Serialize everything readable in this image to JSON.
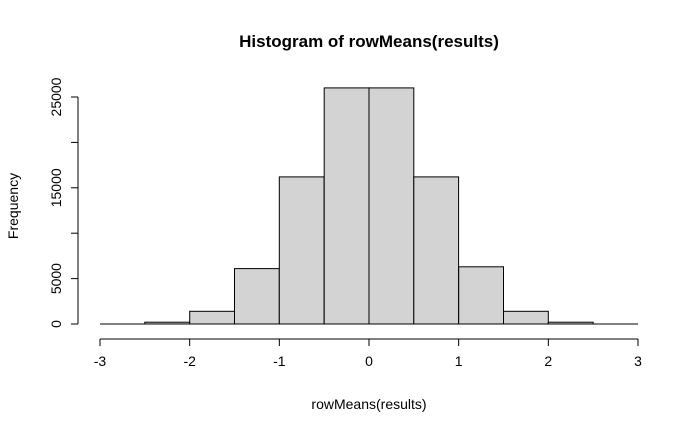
{
  "chart_data": {
    "type": "bar",
    "title": "Histogram of rowMeans(results)",
    "xlabel": "rowMeans(results)",
    "ylabel": "Frequency",
    "bins": [
      {
        "from": -3.0,
        "to": -2.5,
        "count": 0
      },
      {
        "from": -2.5,
        "to": -2.0,
        "count": 200
      },
      {
        "from": -2.0,
        "to": -1.5,
        "count": 1400
      },
      {
        "from": -1.5,
        "to": -1.0,
        "count": 6100
      },
      {
        "from": -1.0,
        "to": -0.5,
        "count": 16200
      },
      {
        "from": -0.5,
        "to": 0.0,
        "count": 26000
      },
      {
        "from": 0.0,
        "to": 0.5,
        "count": 26000
      },
      {
        "from": 0.5,
        "to": 1.0,
        "count": 16200
      },
      {
        "from": 1.0,
        "to": 1.5,
        "count": 6300
      },
      {
        "from": 1.5,
        "to": 2.0,
        "count": 1400
      },
      {
        "from": 2.0,
        "to": 2.5,
        "count": 200
      },
      {
        "from": 2.5,
        "to": 3.0,
        "count": 0
      }
    ],
    "xlim": [
      -3,
      3
    ],
    "ylim": [
      0,
      26000
    ],
    "x_ticks": [
      "-3",
      "-2",
      "-1",
      "0",
      "1",
      "2",
      "3"
    ],
    "y_ticks": [
      "0",
      "5000",
      "15000",
      "25000"
    ],
    "grid": false,
    "legend": "none"
  }
}
